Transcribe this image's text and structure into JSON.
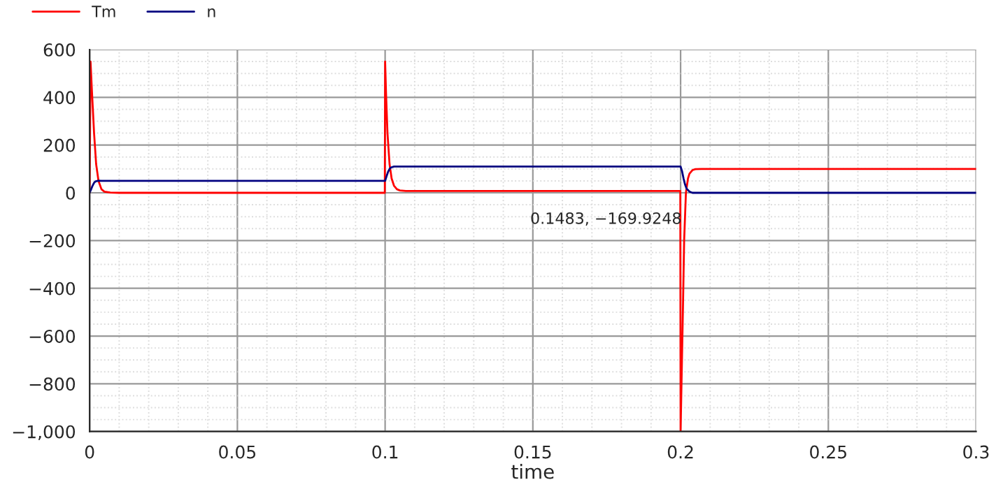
{
  "chart_data": {
    "type": "line",
    "xlabel": "time",
    "xlim": [
      0,
      0.3
    ],
    "xticks": [
      0,
      0.05,
      0.1,
      0.15,
      0.2,
      0.25,
      0.3
    ],
    "ylim": [
      -1000,
      600
    ],
    "yticks": [
      {
        "value": -1000,
        "label": "−1,000"
      },
      {
        "value": -800,
        "label": "−800"
      },
      {
        "value": -600,
        "label": "−600"
      },
      {
        "value": -400,
        "label": "−400"
      },
      {
        "value": -200,
        "label": "−200"
      },
      0,
      200,
      400,
      600
    ],
    "grid": true,
    "legend": "top left",
    "line_style": "solid",
    "marker": "none",
    "series": [
      {
        "name": "Tm",
        "color": "#ff0000",
        "x": [
          0,
          0.0003,
          0.0008,
          0.0015,
          0.0022,
          0.003,
          0.004,
          0.005,
          0.007,
          0.01,
          0.0999,
          0.1,
          0.1003,
          0.1008,
          0.1015,
          0.1022,
          0.103,
          0.104,
          0.105,
          0.107,
          0.11,
          0.1999,
          0.2,
          0.2003,
          0.2008,
          0.2012,
          0.2018,
          0.2025,
          0.203,
          0.204,
          0.205,
          0.207,
          0.21,
          0.3
        ],
        "values": [
          0,
          550,
          420,
          250,
          120,
          50,
          15,
          5,
          1,
          0,
          0,
          550,
          420,
          250,
          120,
          60,
          30,
          15,
          10,
          8,
          8,
          8,
          -1000,
          -800,
          -480,
          -200,
          0,
          60,
          80,
          95,
          99,
          100,
          100,
          100
        ]
      },
      {
        "name": "n",
        "color": "#000080",
        "x": [
          0,
          0.0005,
          0.001,
          0.0015,
          0.002,
          0.003,
          0.004,
          0.006,
          0.1,
          0.1005,
          0.101,
          0.1015,
          0.102,
          0.103,
          0.104,
          0.106,
          0.2,
          0.2005,
          0.201,
          0.2015,
          0.202,
          0.203,
          0.204,
          0.206,
          0.3
        ],
        "values": [
          0,
          15,
          30,
          42,
          48,
          51,
          50,
          50,
          50,
          70,
          88,
          100,
          106,
          110,
          110,
          110,
          110,
          90,
          60,
          35,
          18,
          5,
          0,
          0,
          0
        ]
      }
    ],
    "annotations": [
      "0.1483, −169.9248"
    ]
  }
}
